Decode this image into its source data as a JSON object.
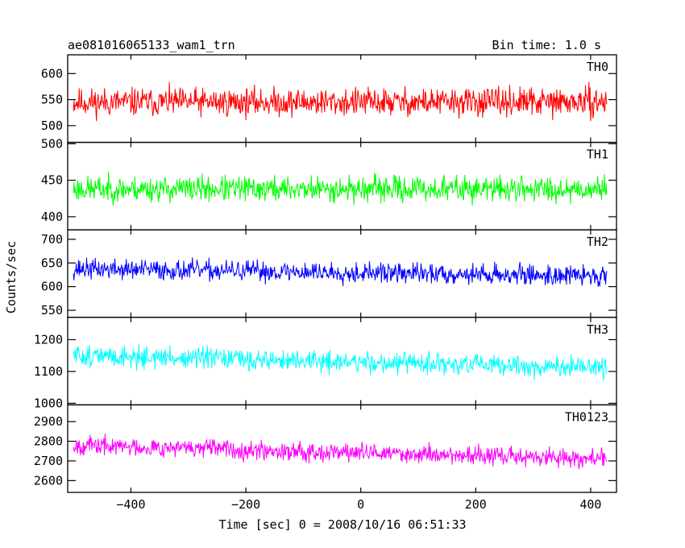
{
  "header": {
    "title": "ae081016065133_wam1_trn",
    "bin_time": "Bin time: 1.0 s"
  },
  "chart_data": {
    "type": "line",
    "x_axis": {
      "label": "Time [sec] 0 = 2008/10/16 06:51:33",
      "range": [
        -510,
        445
      ],
      "ticks": [
        -400,
        -200,
        0,
        200,
        400
      ]
    },
    "y_axis_label": "Counts/sec",
    "panels": [
      {
        "name": "TH0",
        "color": "#ff0000",
        "ylim": [
          468,
          636
        ],
        "ticks": [
          500,
          550,
          600
        ],
        "mean": 545,
        "amplitude": 40,
        "trend": 0,
        "seed": 11
      },
      {
        "name": "TH1",
        "color": "#00ff00",
        "ylim": [
          382,
          502
        ],
        "ticks": [
          400,
          450,
          500
        ],
        "mean": 438,
        "amplitude": 26,
        "trend": 0,
        "seed": 23
      },
      {
        "name": "TH2",
        "color": "#0000ff",
        "ylim": [
          535,
          720
        ],
        "ticks": [
          550,
          600,
          650,
          700
        ],
        "mean": 630,
        "amplitude": 32,
        "trend": -15,
        "seed": 37
      },
      {
        "name": "TH3",
        "color": "#00ffff",
        "ylim": [
          995,
          1270
        ],
        "ticks": [
          1000,
          1100,
          1200
        ],
        "mean": 1130,
        "amplitude": 50,
        "trend": -40,
        "seed": 51
      },
      {
        "name": "TH0123",
        "color": "#ff00ff",
        "ylim": [
          2540,
          2985
        ],
        "ticks": [
          2600,
          2700,
          2800,
          2900
        ],
        "mean": 2745,
        "amplitude": 70,
        "trend": -70,
        "seed": 67
      }
    ],
    "x_start": -500,
    "x_end": 428,
    "bin": 1.0
  }
}
